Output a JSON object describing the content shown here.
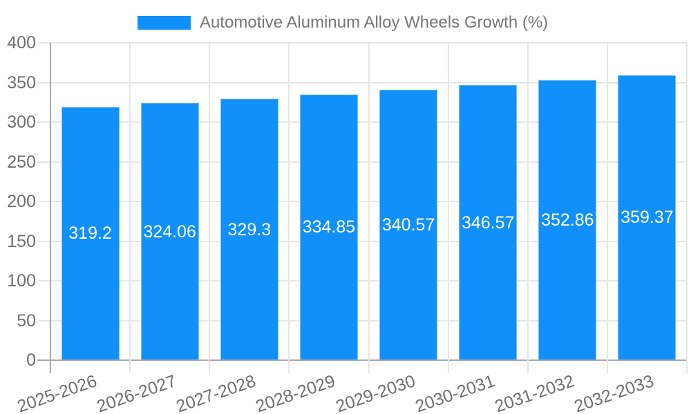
{
  "legend": {
    "label": "Automotive Aluminum Alloy Wheels Growth (%)"
  },
  "chart_data": {
    "type": "bar",
    "title": "Automotive Aluminum Alloy Wheels Growth (%)",
    "categories": [
      "2025-2026",
      "2026-2027",
      "2027-2028",
      "2028-2029",
      "2029-2030",
      "2030-2031",
      "2031-2032",
      "2032-2033"
    ],
    "values": [
      319.2,
      324.06,
      329.3,
      334.85,
      340.57,
      346.57,
      352.86,
      359.37
    ],
    "value_labels": [
      "319.2",
      "324.06",
      "329.3",
      "334.85",
      "340.57",
      "346.57",
      "352.86",
      "359.37"
    ],
    "xlabel": "",
    "ylabel": "",
    "ylim": [
      0,
      400
    ],
    "yticks": [
      0,
      50,
      100,
      150,
      200,
      250,
      300,
      350,
      400
    ],
    "grid": true,
    "legend_position": "top",
    "colors": {
      "bar": "#1090f8",
      "bar_edge": "#7cc0fa",
      "value_text": "#ffffff",
      "grid_line": "#e6e6e6",
      "axis_line": "#a8a8a8",
      "tick_text": "#6e6e6e",
      "legend_text": "#757575",
      "background": "#ffffff"
    }
  }
}
